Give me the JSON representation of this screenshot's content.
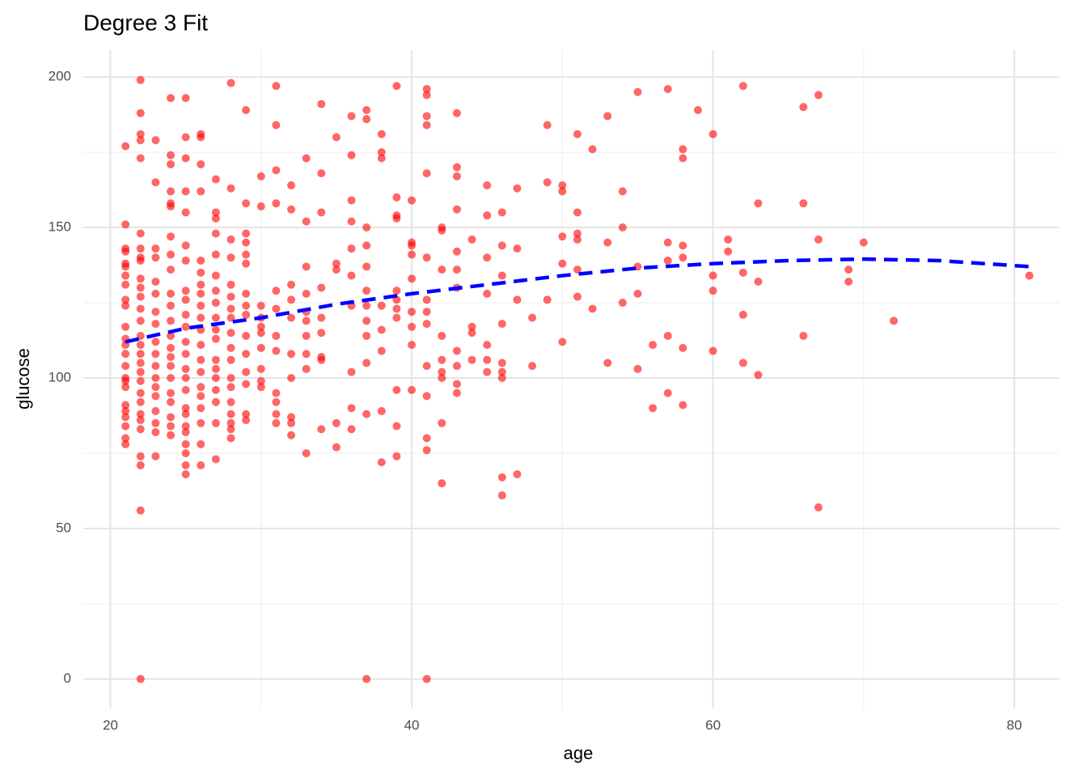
{
  "chart_data": {
    "type": "scatter",
    "title": "Degree 3 Fit",
    "x_label": "age",
    "y_label": "glucose",
    "xlim": [
      18.2,
      83.0
    ],
    "ylim": [
      -9.7,
      208.9
    ],
    "xticks": [
      20,
      40,
      60,
      80
    ],
    "yticks": [
      0,
      50,
      100,
      150,
      200
    ],
    "minor_xticks": [
      30,
      50,
      70
    ],
    "minor_yticks": [
      25,
      75,
      125,
      175
    ],
    "grid": true,
    "points": {
      "color": "#ff0000",
      "opacity": 0.6,
      "x": [
        21,
        21,
        21,
        21,
        21,
        21,
        21,
        21,
        21,
        21,
        21,
        21,
        21,
        21,
        21,
        21,
        21,
        21,
        21,
        21,
        21,
        21,
        21,
        21,
        22,
        22,
        22,
        22,
        22,
        22,
        22,
        22,
        22,
        22,
        22,
        22,
        22,
        22,
        22,
        22,
        22,
        22,
        22,
        22,
        22,
        22,
        22,
        22,
        22,
        22,
        22,
        22,
        22,
        23,
        23,
        23,
        23,
        23,
        23,
        23,
        23,
        23,
        23,
        23,
        23,
        23,
        23,
        23,
        23,
        23,
        23,
        24,
        24,
        24,
        24,
        24,
        24,
        24,
        24,
        24,
        24,
        24,
        24,
        24,
        24,
        24,
        24,
        24,
        24,
        24,
        24,
        24,
        24,
        25,
        25,
        25,
        25,
        25,
        25,
        25,
        25,
        25,
        25,
        25,
        25,
        25,
        25,
        25,
        25,
        25,
        25,
        25,
        25,
        25,
        25,
        25,
        25,
        26,
        26,
        26,
        26,
        26,
        26,
        26,
        26,
        26,
        26,
        26,
        26,
        26,
        26,
        26,
        26,
        26,
        26,
        26,
        26,
        27,
        27,
        27,
        27,
        27,
        27,
        27,
        27,
        27,
        27,
        27,
        27,
        27,
        27,
        27,
        27,
        27,
        27,
        28,
        28,
        28,
        28,
        28,
        28,
        28,
        28,
        28,
        28,
        28,
        28,
        28,
        28,
        28,
        28,
        28,
        28,
        29,
        29,
        29,
        29,
        29,
        29,
        29,
        29,
        29,
        29,
        29,
        29,
        29,
        29,
        29,
        30,
        30,
        30,
        30,
        30,
        30,
        30,
        30,
        30,
        30,
        31,
        31,
        31,
        31,
        31,
        31,
        31,
        31,
        31,
        31,
        31,
        31,
        32,
        32,
        32,
        32,
        32,
        32,
        32,
        32,
        32,
        32,
        33,
        33,
        33,
        33,
        33,
        33,
        33,
        33,
        33,
        33,
        34,
        34,
        34,
        34,
        34,
        34,
        34,
        34,
        34,
        35,
        35,
        35,
        35,
        35,
        36,
        36,
        36,
        36,
        36,
        36,
        36,
        36,
        36,
        36,
        37,
        37,
        37,
        37,
        37,
        37,
        37,
        37,
        37,
        37,
        37,
        37,
        38,
        38,
        38,
        38,
        38,
        38,
        38,
        38,
        39,
        39,
        39,
        39,
        39,
        39,
        39,
        39,
        39,
        39,
        39,
        40,
        40,
        40,
        40,
        40,
        40,
        40,
        40,
        40,
        41,
        41,
        41,
        41,
        41,
        41,
        41,
        41,
        41,
        41,
        41,
        41,
        41,
        41,
        42,
        42,
        42,
        42,
        42,
        42,
        42,
        42,
        42,
        43,
        43,
        43,
        43,
        43,
        43,
        43,
        43,
        43,
        43,
        43,
        44,
        44,
        44,
        44,
        45,
        45,
        45,
        45,
        45,
        45,
        45,
        46,
        46,
        46,
        46,
        46,
        46,
        46,
        46,
        46,
        47,
        47,
        47,
        47,
        48,
        48,
        49,
        49,
        49,
        50,
        50,
        50,
        50,
        50,
        51,
        51,
        51,
        51,
        51,
        51,
        52,
        52,
        53,
        53,
        53,
        54,
        54,
        54,
        55,
        55,
        55,
        55,
        56,
        56,
        57,
        57,
        57,
        57,
        57,
        58,
        58,
        58,
        58,
        58,
        58,
        59,
        60,
        60,
        60,
        60,
        61,
        61,
        62,
        62,
        62,
        62,
        63,
        63,
        63,
        66,
        66,
        66,
        67,
        67,
        67,
        69,
        69,
        70,
        72,
        81
      ],
      "values": [
        177,
        151,
        143,
        142,
        138,
        137,
        134,
        131,
        126,
        124,
        117,
        113,
        111,
        108,
        104,
        100,
        99,
        97,
        91,
        89,
        87,
        84,
        80,
        78,
        199,
        188,
        181,
        179,
        173,
        148,
        143,
        140,
        139,
        133,
        130,
        127,
        123,
        119,
        114,
        111,
        108,
        105,
        102,
        99,
        95,
        92,
        88,
        86,
        83,
        74,
        71,
        56,
        0,
        179,
        165,
        143,
        140,
        132,
        128,
        122,
        118,
        112,
        108,
        104,
        100,
        97,
        94,
        89,
        85,
        82,
        74,
        193,
        174,
        171,
        162,
        158,
        157,
        147,
        141,
        136,
        128,
        124,
        119,
        114,
        110,
        107,
        104,
        100,
        95,
        92,
        87,
        84,
        81,
        193,
        180,
        173,
        162,
        155,
        144,
        139,
        129,
        126,
        121,
        117,
        112,
        108,
        103,
        100,
        96,
        90,
        88,
        84,
        82,
        78,
        75,
        71,
        68,
        181,
        180,
        171,
        162,
        139,
        135,
        131,
        128,
        124,
        120,
        116,
        111,
        106,
        102,
        97,
        94,
        90,
        85,
        78,
        71,
        166,
        155,
        153,
        148,
        141,
        134,
        129,
        125,
        120,
        116,
        113,
        106,
        103,
        100,
        96,
        92,
        85,
        73,
        198,
        163,
        146,
        140,
        131,
        127,
        123,
        120,
        115,
        110,
        106,
        100,
        97,
        92,
        88,
        85,
        83,
        80,
        189,
        158,
        148,
        145,
        141,
        138,
        128,
        124,
        121,
        114,
        108,
        102,
        98,
        88,
        86,
        167,
        157,
        124,
        120,
        117,
        115,
        110,
        103,
        99,
        97,
        197,
        184,
        169,
        158,
        129,
        123,
        114,
        109,
        95,
        92,
        88,
        85,
        164,
        156,
        131,
        126,
        120,
        108,
        100,
        87,
        85,
        81,
        173,
        152,
        137,
        128,
        122,
        119,
        114,
        108,
        103,
        75,
        191,
        168,
        155,
        130,
        120,
        115,
        107,
        106,
        83,
        180,
        138,
        136,
        85,
        77,
        187,
        174,
        159,
        152,
        143,
        134,
        124,
        102,
        90,
        83,
        189,
        186,
        150,
        144,
        137,
        129,
        124,
        119,
        114,
        105,
        88,
        0,
        181,
        175,
        173,
        124,
        116,
        109,
        89,
        72,
        197,
        160,
        154,
        153,
        129,
        126,
        123,
        120,
        96,
        84,
        74,
        159,
        145,
        144,
        141,
        133,
        122,
        117,
        111,
        96,
        196,
        194,
        187,
        184,
        168,
        140,
        126,
        122,
        118,
        104,
        94,
        80,
        76,
        0,
        150,
        149,
        136,
        114,
        106,
        102,
        100,
        85,
        65,
        188,
        170,
        167,
        156,
        142,
        136,
        130,
        109,
        104,
        98,
        95,
        146,
        117,
        115,
        106,
        164,
        154,
        140,
        128,
        111,
        106,
        102,
        155,
        144,
        134,
        118,
        105,
        102,
        100,
        67,
        61,
        163,
        143,
        126,
        68,
        120,
        104,
        184,
        165,
        126,
        164,
        162,
        147,
        138,
        112,
        181,
        155,
        148,
        146,
        136,
        127,
        176,
        123,
        187,
        145,
        105,
        162,
        150,
        125,
        195,
        137,
        128,
        103,
        111,
        90,
        196,
        145,
        139,
        114,
        95,
        176,
        173,
        144,
        140,
        110,
        91,
        189,
        181,
        134,
        129,
        109,
        146,
        142,
        197,
        135,
        121,
        105,
        158,
        132,
        101,
        190,
        158,
        114,
        194,
        146,
        57,
        136,
        132,
        145,
        119,
        134
      ]
    },
    "fit_line": {
      "color": "#0000ff",
      "dashed": true,
      "x": [
        21,
        25,
        30,
        35,
        40,
        45,
        50,
        55,
        60,
        65,
        70,
        75,
        81
      ],
      "values": [
        112,
        116.5,
        120,
        124.5,
        128,
        131,
        134,
        136.5,
        138,
        139,
        139.5,
        139,
        137
      ]
    }
  }
}
